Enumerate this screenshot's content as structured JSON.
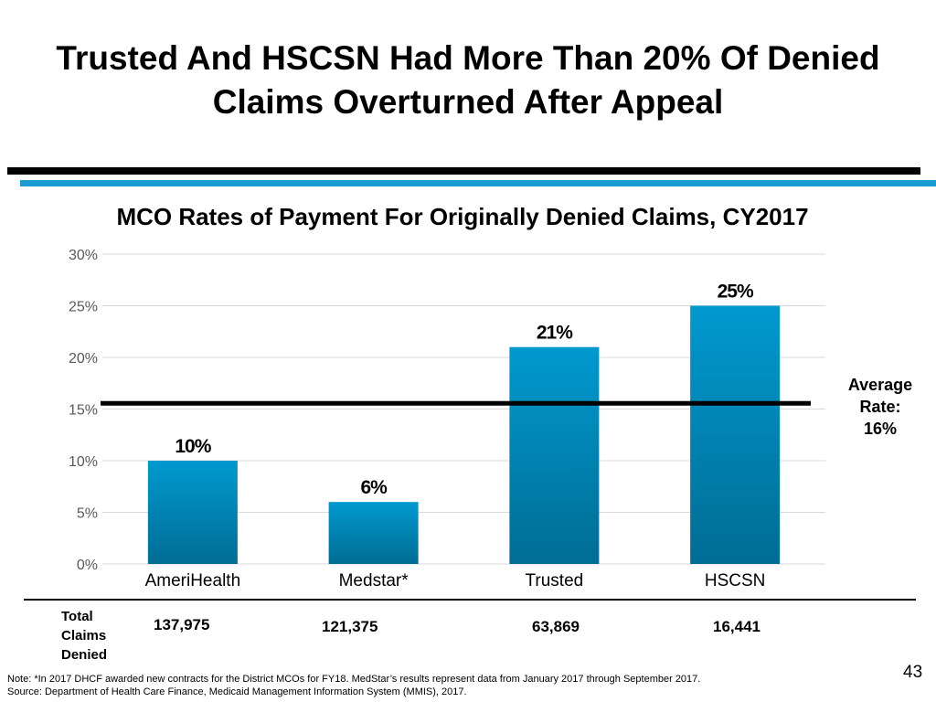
{
  "slide": {
    "title": "Trusted And HSCSN Had More Than 20% Of Denied Claims Overturned After Appeal",
    "average_label_line1": "Average",
    "average_label_line2": "Rate:",
    "average_label_line3": "16%",
    "totals_label_line1": "Total",
    "totals_label_line2": "Claims",
    "totals_label_line3": "Denied",
    "totals": [
      "137,975",
      "121,375",
      "63,869",
      "16,441"
    ],
    "note_line1": "Note: *In 2017 DHCF awarded new contracts for the District MCOs for FY18.  MedStar’s results represent data from January 2017 through September 2017.",
    "note_line2": "Source: Department of Health Care Finance, Medicaid Management Information System (MMIS), 2017.",
    "page_number": "43"
  },
  "colors": {
    "bar_top": "#0199cf",
    "bar_bottom": "#006d94",
    "accent_rule": "#1a9bd1",
    "grid": "#d9d9d9",
    "axis_text": "#595959"
  },
  "chart_data": {
    "type": "bar",
    "title": "MCO Rates of Payment For Originally Denied Claims, CY2017",
    "categories": [
      "AmeriHealth",
      "Medstar*",
      "Trusted",
      "HSCSN"
    ],
    "values": [
      10,
      6,
      21,
      25
    ],
    "data_labels": [
      "10%",
      "6%",
      "21%",
      "25%"
    ],
    "ylim": [
      0,
      30
    ],
    "yticks": [
      0,
      5,
      10,
      15,
      20,
      25,
      30
    ],
    "ytick_labels": [
      "0%",
      "5%",
      "10%",
      "15%",
      "20%",
      "25%",
      "30%"
    ],
    "reference_line": 16,
    "grid": true,
    "xlabel": "",
    "ylabel": ""
  }
}
